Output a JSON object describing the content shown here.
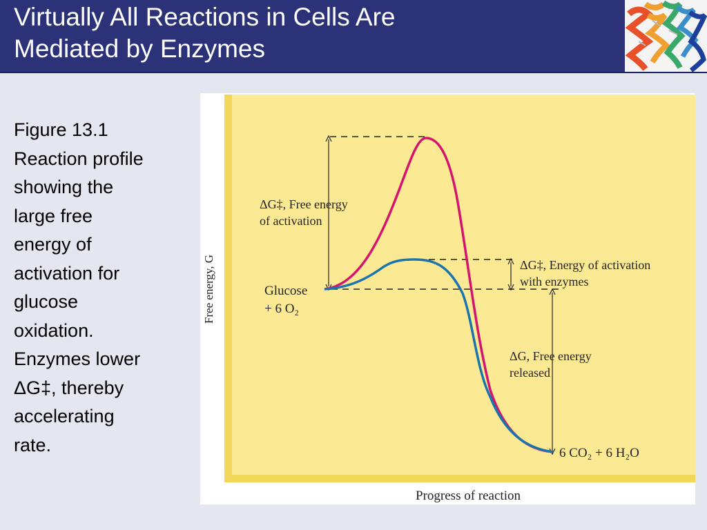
{
  "slide": {
    "title_line1": "Virtually All Reactions in Cells Are",
    "title_line2": "Mediated by Enzymes"
  },
  "caption": {
    "lines": [
      "Figure 13.1",
      "Reaction profile",
      "showing the",
      "large free",
      "energy of",
      "activation for",
      "glucose",
      "oxidation.",
      "Enzymes lower",
      "ΔG‡, thereby",
      "accelerating",
      "rate."
    ]
  },
  "figure": {
    "y_axis_label": "Free energy, G",
    "x_axis_label": "Progress of reaction",
    "reactant_label_line1": "Glucose",
    "reactant_label_line2": "+ 6 O₂",
    "product_label": "6 CO₂ + 6 H₂O",
    "activation_label_line1": "ΔG‡, Free energy",
    "activation_label_line2": "of activation",
    "enzyme_label_line1": "ΔG‡, Energy of activation",
    "enzyme_label_line2": "with enzymes",
    "released_label_line1": "ΔG, Free energy",
    "released_label_line2": "released",
    "colors": {
      "background": "#fce994",
      "panel_edge": "#f2d85a",
      "uncatalyzed_curve": "#d4146e",
      "catalyzed_curve": "#1a75ad"
    }
  }
}
